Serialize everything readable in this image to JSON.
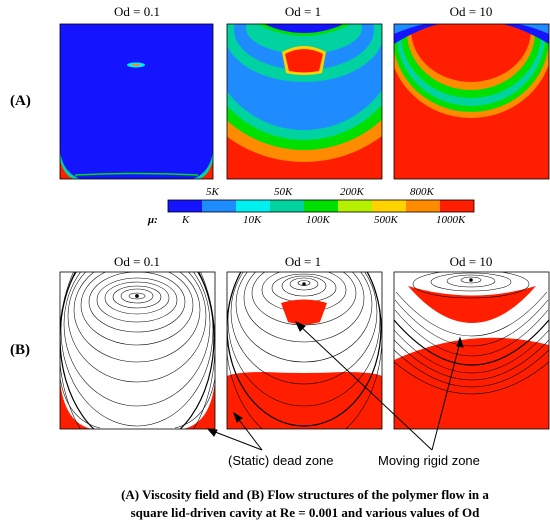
{
  "panel_a": {
    "letter": "(A)",
    "titles": [
      "Od = 0.1",
      "Od = 1",
      "Od = 10"
    ]
  },
  "colorbar": {
    "symbol": "μ:",
    "top_labels": [
      "5K",
      "50K",
      "200K",
      "800K"
    ],
    "bottom_labels": [
      "K",
      "10K",
      "100K",
      "500K",
      "1000K"
    ],
    "colors": [
      "#1414ff",
      "#1e8cff",
      "#00f0f0",
      "#00d2a0",
      "#00e000",
      "#b4f000",
      "#ffd200",
      "#ff8c00",
      "#ff1e00"
    ]
  },
  "panel_b": {
    "letter": "(B)",
    "titles": [
      "Od = 0.1",
      "Od = 1",
      "Od = 10"
    ]
  },
  "callouts": {
    "dead_zone": "(Static) dead zone",
    "rigid_zone": "Moving rigid zone"
  },
  "caption": {
    "line1": "(A) Viscosity field and (B) Flow structures of the polymer flow in a",
    "line2": "square lid-driven cavity at Re = 0.001 and various values of Od"
  },
  "colors": {
    "blue": "#1414ff",
    "red": "#ff1e00",
    "green": "#00e000"
  }
}
